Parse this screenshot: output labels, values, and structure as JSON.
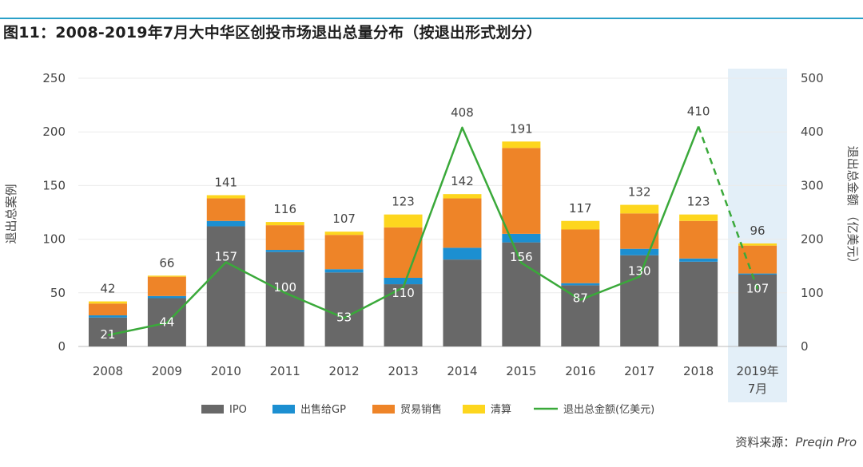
{
  "title": "图11：2008-2019年7月大中华区创投市场退出总量分布（按退出形式划分）",
  "source_label": "资料来源：",
  "source_value": "Preqin Pro",
  "chart_data": {
    "type": "bar",
    "stacked": true,
    "categories": [
      "2008",
      "2009",
      "2010",
      "2011",
      "2012",
      "2013",
      "2014",
      "2015",
      "2016",
      "2017",
      "2018",
      "2019年\n7月"
    ],
    "highlight_category_index": 11,
    "series": [
      {
        "name": "IPO",
        "color": "#686868",
        "values": [
          27,
          45,
          112,
          88,
          69,
          58,
          81,
          97,
          57,
          85,
          79,
          67
        ]
      },
      {
        "name": "出售给GP",
        "color": "#1c8fd1",
        "values": [
          2,
          2,
          5,
          2,
          3,
          6,
          11,
          8,
          2,
          6,
          3,
          1
        ]
      },
      {
        "name": "贸易销售",
        "color": "#ee8428",
        "values": [
          11,
          18,
          21,
          23,
          32,
          47,
          46,
          80,
          50,
          33,
          35,
          26
        ]
      },
      {
        "name": "清算",
        "color": "#fdd61e",
        "values": [
          2,
          1,
          3,
          3,
          3,
          12,
          4,
          6,
          8,
          8,
          6,
          2
        ]
      }
    ],
    "totals": [
      "42",
      "66",
      "141",
      "116",
      "107",
      "123",
      "142",
      "191",
      "117",
      "132",
      "123",
      "96"
    ],
    "line": {
      "name": "退出总金额(亿美元)",
      "color": "#3aa93a",
      "axis": "right",
      "values": [
        21,
        44,
        157,
        100,
        53,
        110,
        408,
        156,
        87,
        130,
        410,
        107
      ],
      "labels": [
        "21",
        "44",
        "157",
        "100",
        "53",
        "110",
        "408",
        "156",
        "87",
        "130",
        "410",
        "107"
      ],
      "dashed_last_segment": true
    },
    "ylabel": "退出总案例",
    "y2label": "退出总金额 （亿美元）",
    "ylim": [
      0,
      250
    ],
    "y2lim": [
      0,
      500
    ],
    "yticks": [
      "0",
      "50",
      "100",
      "150",
      "200",
      "250"
    ],
    "y2ticks": [
      "0",
      "100",
      "200",
      "300",
      "400",
      "500"
    ],
    "legend_position": "bottom"
  }
}
